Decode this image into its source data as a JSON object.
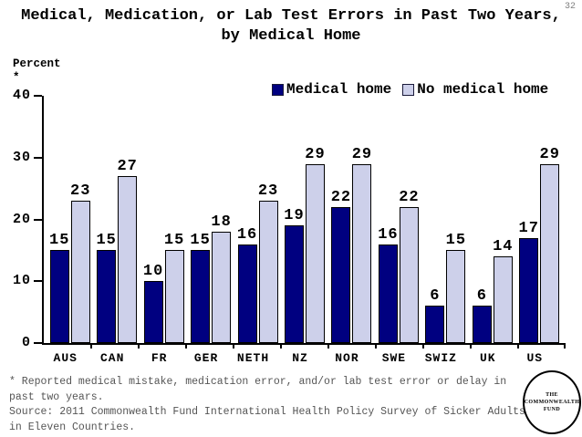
{
  "page": {
    "number": "32"
  },
  "title": {
    "line1": "Medical, Medication, or Lab Test Errors in Past Two Years,",
    "line2": "by Medical Home"
  },
  "y_axis": {
    "caption": "Percent",
    "footnote_marker": "*"
  },
  "legend": [
    {
      "label": "Medical home",
      "color": "#000080"
    },
    {
      "label": "No medical home",
      "color": "#CDD0EA"
    }
  ],
  "chart_data": {
    "type": "bar",
    "title": "Medical, Medication, or Lab Test Errors in Past Two Years, by Medical Home",
    "xlabel": "",
    "ylabel": "Percent",
    "ylim": [
      0,
      40
    ],
    "yticks": [
      0,
      10,
      20,
      30,
      40
    ],
    "grid": false,
    "legend_position": "top",
    "categories": [
      "AUS",
      "CAN",
      "FR",
      "GER",
      "NETH",
      "NZ",
      "NOR",
      "SWE",
      "SWIZ",
      "UK",
      "US"
    ],
    "series": [
      {
        "name": "Medical home",
        "color": "#000080",
        "values": [
          15,
          15,
          10,
          15,
          16,
          19,
          22,
          16,
          6,
          6,
          17
        ]
      },
      {
        "name": "No medical home",
        "color": "#CDD0EA",
        "values": [
          23,
          27,
          15,
          18,
          23,
          29,
          29,
          22,
          15,
          14,
          29
        ]
      }
    ]
  },
  "footnote": {
    "lines": [
      "* Reported medical mistake, medication error, and/or lab test error or delay in",
      "past two years.",
      "Source: 2011 Commonwealth Fund International Health Policy Survey of Sicker Adults",
      "in Eleven Countries."
    ]
  },
  "logo": {
    "lines": [
      "THE",
      "COMMONWEALTH",
      "FUND"
    ]
  }
}
